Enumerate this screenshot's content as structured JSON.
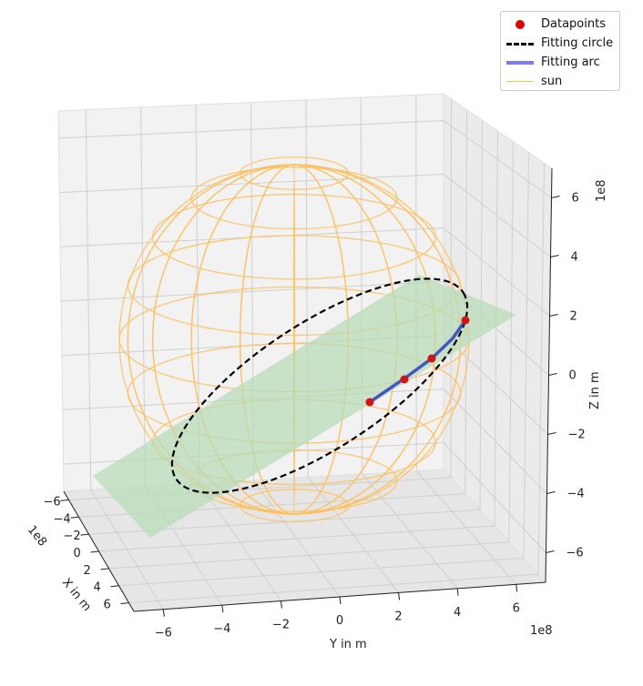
{
  "chart_data": {
    "type": "3d-line",
    "xlabel": "X in m",
    "ylabel": "Y in m",
    "zlabel": "Z in m",
    "x_offset": "1e8",
    "y_offset": "1e8",
    "z_offset": "1e8",
    "xlim": [
      -7,
      7
    ],
    "ylim": [
      -7,
      7
    ],
    "zlim": [
      -7,
      7
    ],
    "x_ticks": [
      "−6",
      "−4",
      "−2",
      "0",
      "2",
      "4",
      "6"
    ],
    "y_ticks": [
      "−6",
      "−4",
      "−2",
      "0",
      "2",
      "4",
      "6"
    ],
    "z_ticks": [
      "−6",
      "−4",
      "−2",
      "0",
      "2",
      "4",
      "6"
    ],
    "grid": true,
    "legend_position": "top-right",
    "series": [
      {
        "name": "Datapoints",
        "color": "#e00000",
        "marker": "circle"
      },
      {
        "name": "Fitting circle",
        "color": "#000000",
        "style": "dashed"
      },
      {
        "name": "Fitting arc",
        "color": "#7b7bff",
        "style": "solid"
      },
      {
        "name": "sun",
        "color": "#ffc05c",
        "style": "wireframe"
      }
    ],
    "sun": {
      "radius": 6.96,
      "center": [
        0,
        0,
        0
      ]
    },
    "fitting_plane_color": "#b6dcb6"
  }
}
